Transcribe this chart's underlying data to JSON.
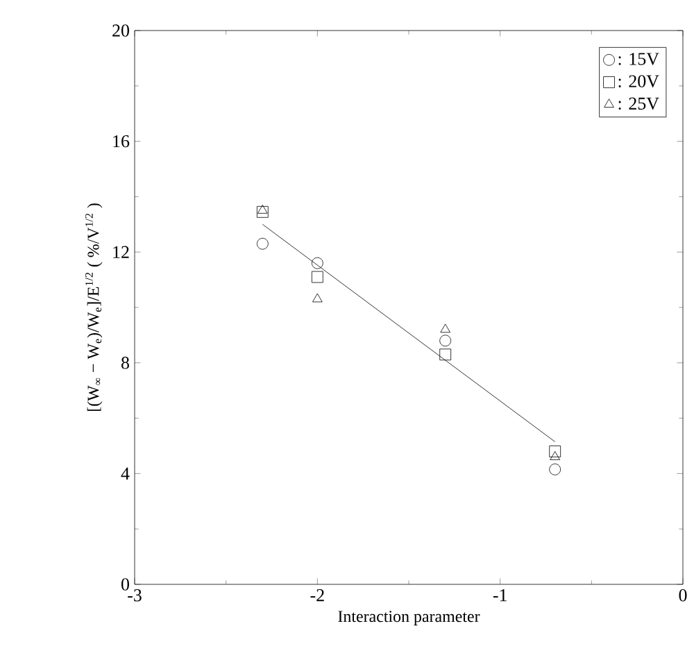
{
  "chart_data": {
    "type": "scatter",
    "xlabel": "Interaction parameter",
    "ylabel": "[(W$_{∞}$ − W$_{e}$)/W$_{e}$]/E$^{1/2}$  ( %/V$^{1/2}$ )",
    "xlim": [
      -3,
      0
    ],
    "ylim": [
      0,
      20
    ],
    "xticks": [
      -3,
      -2,
      -1,
      0
    ],
    "yticks": [
      0,
      4,
      8,
      12,
      16,
      20
    ],
    "legend": "top right",
    "grid": false,
    "series": [
      {
        "name": ": 15V",
        "color": "#000000",
        "marker": "circle",
        "x": [
          -2.3,
          -2.0,
          -1.3,
          -0.7
        ],
        "values": [
          12.3,
          11.6,
          8.8,
          4.15
        ]
      },
      {
        "name": ": 20V",
        "color": "#000000",
        "marker": "square",
        "x": [
          -2.3,
          -2.0,
          -1.3,
          -0.7
        ],
        "values": [
          13.45,
          11.1,
          8.3,
          4.8
        ]
      },
      {
        "name": ": 25V",
        "color": "#000000",
        "marker": "triangle",
        "x": [
          -2.3,
          -2.0,
          -1.3,
          -0.7
        ],
        "values": [
          13.5,
          10.3,
          9.2,
          4.6
        ]
      },
      {
        "type": "line",
        "color": "#000000",
        "marker": "none",
        "x": [
          -2.3,
          -0.7
        ],
        "values": [
          13.0,
          5.15
        ]
      }
    ]
  }
}
